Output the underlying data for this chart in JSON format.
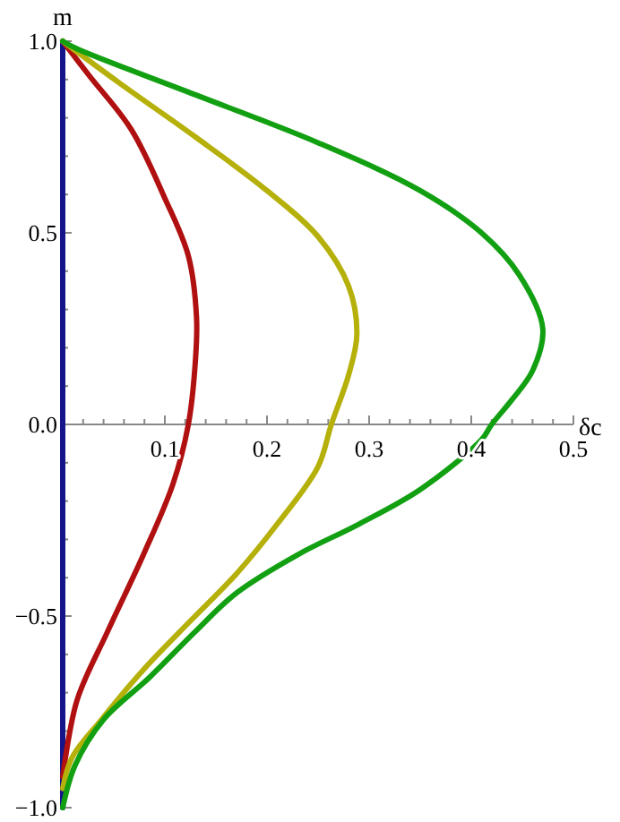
{
  "chart_data": {
    "type": "line",
    "xlabel": "δc",
    "ylabel": "m",
    "xlim": [
      0,
      0.5
    ],
    "ylim": [
      -1,
      1
    ],
    "xticks": [
      {
        "value": 0.02,
        "label": null
      },
      {
        "value": 0.04,
        "label": null
      },
      {
        "value": 0.06,
        "label": null
      },
      {
        "value": 0.08,
        "label": null
      },
      0.1,
      {
        "value": 0.12,
        "label": null
      },
      {
        "value": 0.14,
        "label": null
      },
      {
        "value": 0.16,
        "label": null
      },
      {
        "value": 0.18,
        "label": null
      },
      0.2,
      {
        "value": 0.22,
        "label": null
      },
      {
        "value": 0.24,
        "label": null
      },
      {
        "value": 0.26,
        "label": null
      },
      {
        "value": 0.28,
        "label": null
      },
      0.3,
      {
        "value": 0.32,
        "label": null
      },
      {
        "value": 0.34,
        "label": null
      },
      {
        "value": 0.36,
        "label": null
      },
      {
        "value": 0.38,
        "label": null
      },
      0.4,
      {
        "value": 0.42,
        "label": null
      },
      {
        "value": 0.44,
        "label": null
      },
      {
        "value": 0.46,
        "label": null
      },
      {
        "value": 0.48,
        "label": null
      },
      0.5
    ],
    "yticks": [
      {
        "value": -1,
        "label": "−1.0"
      },
      {
        "value": -0.9,
        "label": null
      },
      {
        "value": -0.8,
        "label": null
      },
      {
        "value": -0.7,
        "label": null
      },
      {
        "value": -0.6,
        "label": null
      },
      {
        "value": -0.5,
        "label": "−0.5"
      },
      {
        "value": -0.4,
        "label": null
      },
      {
        "value": -0.3,
        "label": null
      },
      {
        "value": -0.2,
        "label": null
      },
      {
        "value": -0.1,
        "label": null
      },
      {
        "value": 0,
        "label": "0.0"
      },
      {
        "value": 0.1,
        "label": null
      },
      {
        "value": 0.2,
        "label": null
      },
      {
        "value": 0.3,
        "label": null
      },
      {
        "value": 0.4,
        "label": null
      },
      {
        "value": 0.5,
        "label": "0.5"
      },
      {
        "value": 0.6,
        "label": null
      },
      {
        "value": 0.7,
        "label": null
      },
      {
        "value": 0.8,
        "label": null
      },
      {
        "value": 0.9,
        "label": null
      },
      {
        "value": 1,
        "label": "1.0"
      }
    ],
    "grid": false,
    "marker": "none",
    "line_style": "solid",
    "series": [
      {
        "color": "#16148a",
        "x": [
          0,
          0,
          0
        ],
        "values": [
          -1,
          0,
          1
        ]
      },
      {
        "color": "#b01010",
        "x": [
          0,
          0.026,
          0.067,
          0.1,
          0.123,
          0.131,
          0.13,
          0.123,
          0.108,
          0.079,
          0.044,
          0.014,
          0
        ],
        "values": [
          1,
          0.91,
          0.77,
          0.59,
          0.44,
          0.28,
          0.17,
          0,
          -0.155,
          -0.34,
          -0.54,
          -0.72,
          -0.92
        ]
      },
      {
        "color": "#b5b00a",
        "x": [
          0,
          0.056,
          0.13,
          0.2,
          0.25,
          0.28,
          0.288,
          0.28,
          0.263,
          0.25,
          0.21,
          0.17,
          0.126,
          0.079,
          0.038,
          0.009,
          0
        ],
        "values": [
          1,
          0.89,
          0.75,
          0.61,
          0.49,
          0.36,
          0.235,
          0.13,
          0,
          -0.11,
          -0.26,
          -0.39,
          -0.51,
          -0.64,
          -0.77,
          -0.87,
          -0.95
        ]
      },
      {
        "color": "#12a012",
        "x": [
          0,
          0.014,
          0.13,
          0.25,
          0.35,
          0.41,
          0.447,
          0.47,
          0.46,
          0.44,
          0.42,
          0.41,
          0.35,
          0.29,
          0.23,
          0.17,
          0.13,
          0.085,
          0.04,
          0.012,
          0
        ],
        "values": [
          1,
          0.98,
          0.86,
          0.735,
          0.61,
          0.5,
          0.39,
          0.25,
          0.14,
          0.065,
          0,
          -0.04,
          -0.17,
          -0.26,
          -0.34,
          -0.44,
          -0.54,
          -0.66,
          -0.77,
          -0.89,
          -1
        ]
      }
    ]
  }
}
